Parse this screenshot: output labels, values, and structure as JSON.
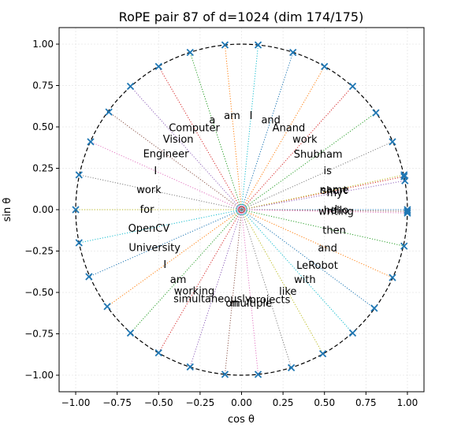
{
  "chart_data": {
    "type": "scatter",
    "title": "RoPE pair 87 of d=1024 (dim 174/175)",
    "xlabel": "cos θ",
    "ylabel": "sin θ",
    "xlim": [
      -1.1,
      1.1
    ],
    "ylim": [
      -1.1,
      1.1
    ],
    "xticks": [
      -1.0,
      -0.75,
      -0.5,
      -0.25,
      0.0,
      0.25,
      0.5,
      0.75,
      1.0
    ],
    "yticks": [
      -1.0,
      -0.75,
      -0.5,
      -0.25,
      0.0,
      0.25,
      0.5,
      0.75,
      1.0
    ],
    "xtick_labels": [
      "−1.00",
      "−0.75",
      "−0.50",
      "−0.25",
      "0.00",
      "0.25",
      "0.50",
      "0.75",
      "1.00"
    ],
    "ytick_labels": [
      "−1.00",
      "−0.75",
      "−0.50",
      "−0.25",
      "0.00",
      "0.25",
      "0.50",
      "0.75",
      "1.00"
    ],
    "grid": true,
    "unit_circle": true,
    "marker_color": "#1f77b4",
    "line_colors": [
      "#1f77b4",
      "#ff7f0e",
      "#2ca02c",
      "#d62728",
      "#9467bd",
      "#8c564b",
      "#e377c2",
      "#7f7f7f",
      "#bcbd22",
      "#17becf"
    ],
    "points": [
      {
        "label": "I",
        "x": 1.0,
        "y": 0.0
      },
      {
        "label": "am",
        "x": -0.1,
        "y": 0.995
      },
      {
        "label": "Shubham",
        "x": 0.81,
        "y": 0.585
      },
      {
        "label": "short",
        "x": 0.98,
        "y": 0.2
      },
      {
        "label": "my",
        "x": 0.985,
        "y": 0.175
      },
      {
        "label": "hello",
        "x": 1.0,
        "y": -0.01
      },
      {
        "label": "writing",
        "x": 1.0,
        "y": -0.02
      },
      {
        "label": "is",
        "x": 0.91,
        "y": 0.41
      },
      {
        "label": "name",
        "x": 0.98,
        "y": 0.21
      },
      {
        "label": "I",
        "x": 0.1,
        "y": 0.995
      },
      {
        "label": "and",
        "x": 0.31,
        "y": 0.95
      },
      {
        "label": "Anand",
        "x": 0.5,
        "y": 0.865
      },
      {
        "label": "a",
        "x": -0.31,
        "y": 0.95
      },
      {
        "label": "Computer",
        "x": -0.5,
        "y": 0.865
      },
      {
        "label": "Vision",
        "x": -0.67,
        "y": 0.745
      },
      {
        "label": "Engineer",
        "x": -0.8,
        "y": 0.59
      },
      {
        "label": "I",
        "x": -0.91,
        "y": 0.41
      },
      {
        "label": "work",
        "x": -0.98,
        "y": 0.21
      },
      {
        "label": "for",
        "x": -1.0,
        "y": 0.0
      },
      {
        "label": "OpenCV",
        "x": -0.98,
        "y": -0.2
      },
      {
        "label": "University",
        "x": -0.92,
        "y": -0.405
      },
      {
        "label": "I",
        "x": -0.81,
        "y": -0.585
      },
      {
        "label": "am",
        "x": -0.67,
        "y": -0.745
      },
      {
        "label": "working",
        "x": -0.5,
        "y": -0.865
      },
      {
        "label": "simultaneously",
        "x": -0.31,
        "y": -0.95
      },
      {
        "label": "on",
        "x": -0.1,
        "y": -0.995
      },
      {
        "label": "multiple",
        "x": 0.1,
        "y": -0.995
      },
      {
        "label": "projects",
        "x": 0.3,
        "y": -0.955
      },
      {
        "label": "like",
        "x": 0.49,
        "y": -0.87
      },
      {
        "label": "with",
        "x": 0.67,
        "y": -0.745
      },
      {
        "label": "LeRobot",
        "x": 0.8,
        "y": -0.595
      },
      {
        "label": "and",
        "x": 0.91,
        "y": -0.41
      },
      {
        "label": "then",
        "x": 0.98,
        "y": -0.22
      },
      {
        "label": "work",
        "x": 0.67,
        "y": 0.745
      }
    ]
  }
}
